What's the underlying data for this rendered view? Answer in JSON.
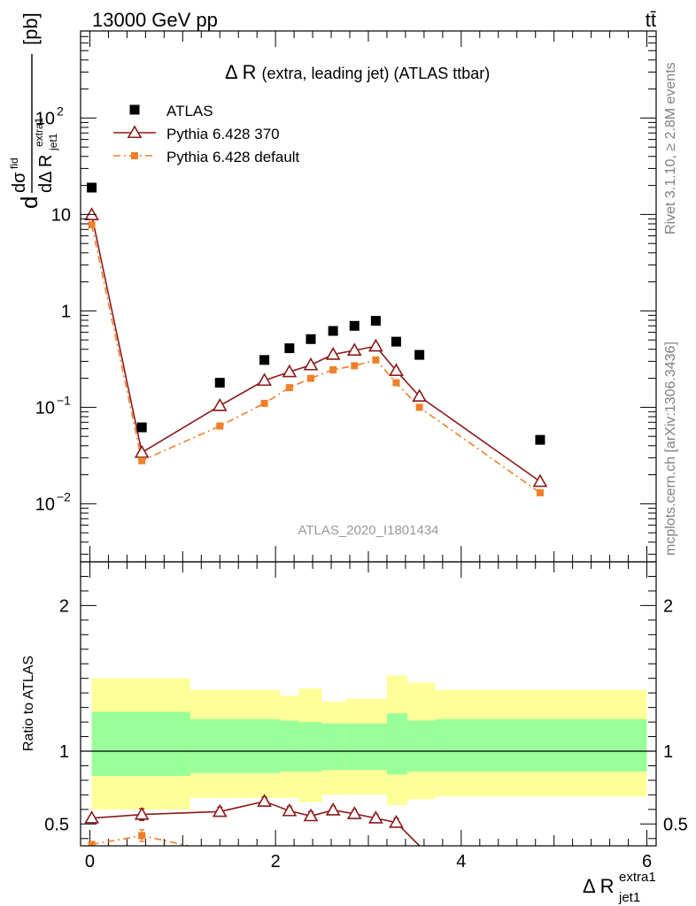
{
  "header": {
    "energy_label": "13000 GeV pp",
    "process_label": "tt̄"
  },
  "side_labels": {
    "rivet": "Rivet 3.1.10, ≥ 2.8M events",
    "mcplots": "mcplots.cern.ch [arXiv:1306.3436]"
  },
  "chart_data": [
    {
      "panel": "main",
      "type": "scatter",
      "title": "Δ R (extra, leading jet) (ATLAS ttbar)",
      "title_main": "Δ R",
      "title_sub": "(extra, leading jet) (ATLAS ttbar)",
      "ylabel": "dσ^fid / dΔ R^extra1_jet1 [pb]",
      "watermark": "ATLAS_2020_I1801434",
      "yscale": "log",
      "ylim": [
        0.0025,
        800
      ],
      "xlim": [
        -0.1,
        6.1
      ],
      "yticks": [
        {
          "value": 0.01,
          "base": "10",
          "exp": "−2"
        },
        {
          "value": 0.1,
          "base": "10",
          "exp": "−1"
        },
        {
          "value": 1,
          "base": "1",
          "exp": ""
        },
        {
          "value": 10,
          "base": "10",
          "exp": ""
        },
        {
          "value": 100,
          "base": "10",
          "exp": "2"
        }
      ],
      "legend_position": "top-left",
      "series": [
        {
          "name": "ATLAS",
          "style": "data-square",
          "color": "#000000",
          "x": [
            0.02,
            0.56,
            1.4,
            1.88,
            2.15,
            2.38,
            2.62,
            2.85,
            3.08,
            3.3,
            3.55,
            4.85
          ],
          "y": [
            19,
            0.062,
            0.18,
            0.31,
            0.41,
            0.51,
            0.62,
            0.7,
            0.79,
            0.48,
            0.35,
            0.046
          ]
        },
        {
          "name": "Pythia 6.428 370",
          "style": "solid-triangle",
          "color": "#8b1a1a",
          "x": [
            0.02,
            0.56,
            1.4,
            1.88,
            2.15,
            2.38,
            2.62,
            2.85,
            3.08,
            3.3,
            3.55,
            4.85
          ],
          "y": [
            9.9,
            0.034,
            0.104,
            0.19,
            0.233,
            0.275,
            0.353,
            0.39,
            0.43,
            0.24,
            0.13,
            0.017
          ]
        },
        {
          "name": "Pythia 6.428 default",
          "style": "dashdot-square",
          "color": "#f07f2a",
          "x": [
            0.02,
            0.56,
            1.4,
            1.88,
            2.15,
            2.38,
            2.62,
            2.85,
            3.08,
            3.3,
            3.55,
            4.85
          ],
          "y": [
            7.8,
            0.028,
            0.064,
            0.11,
            0.16,
            0.2,
            0.245,
            0.27,
            0.31,
            0.18,
            0.1,
            0.013
          ]
        }
      ]
    },
    {
      "panel": "ratio",
      "type": "line",
      "ylabel": "Ratio to ATLAS",
      "xlabel": "Δ R^extra1_jet1",
      "xlabel_main": "Δ R",
      "xlabel_sup": "extra1",
      "xlabel_sub": "jet1",
      "xlim": [
        -0.1,
        6.1
      ],
      "ylim": [
        0.35,
        2.3
      ],
      "xticks": [
        0,
        2,
        4,
        6
      ],
      "yticks": [
        0.5,
        1,
        2
      ],
      "reference_line": 1,
      "bands": [
        {
          "x0": 0.02,
          "x1": 1.08,
          "y_lo": 0.83,
          "y_hi": 1.27,
          "kind": "inner"
        },
        {
          "x0": 1.08,
          "x1": 2.05,
          "y_lo": 0.85,
          "y_hi": 1.22,
          "kind": "inner"
        },
        {
          "x0": 2.05,
          "x1": 2.25,
          "y_lo": 0.86,
          "y_hi": 1.21,
          "kind": "inner"
        },
        {
          "x0": 2.25,
          "x1": 2.5,
          "y_lo": 0.86,
          "y_hi": 1.2,
          "kind": "inner"
        },
        {
          "x0": 2.5,
          "x1": 2.75,
          "y_lo": 0.87,
          "y_hi": 1.19,
          "kind": "inner"
        },
        {
          "x0": 2.75,
          "x1": 3.2,
          "y_lo": 0.87,
          "y_hi": 1.19,
          "kind": "inner"
        },
        {
          "x0": 3.2,
          "x1": 3.42,
          "y_lo": 0.84,
          "y_hi": 1.26,
          "kind": "inner"
        },
        {
          "x0": 3.42,
          "x1": 3.72,
          "y_lo": 0.86,
          "y_hi": 1.21,
          "kind": "inner"
        },
        {
          "x0": 3.72,
          "x1": 6.0,
          "y_lo": 0.86,
          "y_hi": 1.22,
          "kind": "inner"
        },
        {
          "x0": 0.02,
          "x1": 1.08,
          "y_lo": 0.6,
          "y_hi": 1.5,
          "kind": "outer"
        },
        {
          "x0": 1.08,
          "x1": 2.05,
          "y_lo": 0.68,
          "y_hi": 1.42,
          "kind": "outer"
        },
        {
          "x0": 2.05,
          "x1": 2.25,
          "y_lo": 0.68,
          "y_hi": 1.38,
          "kind": "outer"
        },
        {
          "x0": 2.25,
          "x1": 2.5,
          "y_lo": 0.65,
          "y_hi": 1.43,
          "kind": "outer"
        },
        {
          "x0": 2.5,
          "x1": 2.75,
          "y_lo": 0.7,
          "y_hi": 1.34,
          "kind": "outer"
        },
        {
          "x0": 2.75,
          "x1": 3.2,
          "y_lo": 0.7,
          "y_hi": 1.36,
          "kind": "outer"
        },
        {
          "x0": 3.2,
          "x1": 3.42,
          "y_lo": 0.63,
          "y_hi": 1.52,
          "kind": "outer"
        },
        {
          "x0": 3.42,
          "x1": 3.72,
          "y_lo": 0.67,
          "y_hi": 1.47,
          "kind": "outer"
        },
        {
          "x0": 3.72,
          "x1": 6.0,
          "y_lo": 0.69,
          "y_hi": 1.42,
          "kind": "outer"
        }
      ],
      "series": [
        {
          "name": "Pythia 6.428 370",
          "style": "solid-triangle",
          "color": "#8b1a1a",
          "x": [
            0.02,
            0.56,
            1.4,
            1.88,
            2.15,
            2.38,
            2.62,
            2.85,
            3.08,
            3.3,
            3.55
          ],
          "y": [
            0.54,
            0.565,
            0.585,
            0.655,
            0.59,
            0.555,
            0.595,
            0.57,
            0.54,
            0.51,
            0.35
          ],
          "err": [
            0.015,
            0.04,
            0.03,
            0.03,
            0.03,
            0.03,
            0.025,
            0.025,
            0.025,
            0.03,
            0
          ]
        },
        {
          "name": "Pythia 6.428 default",
          "style": "dashdot-square",
          "color": "#f07f2a",
          "x": [
            0.02,
            0.56,
            1.2
          ],
          "y": [
            0.36,
            0.42,
            0.33
          ],
          "err": [
            0.015,
            0.04,
            0
          ]
        }
      ]
    }
  ],
  "colors": {
    "inner_band": "#99ff99",
    "outer_band": "#ffff99",
    "watermark": "#999999",
    "side_text": "#808080"
  }
}
